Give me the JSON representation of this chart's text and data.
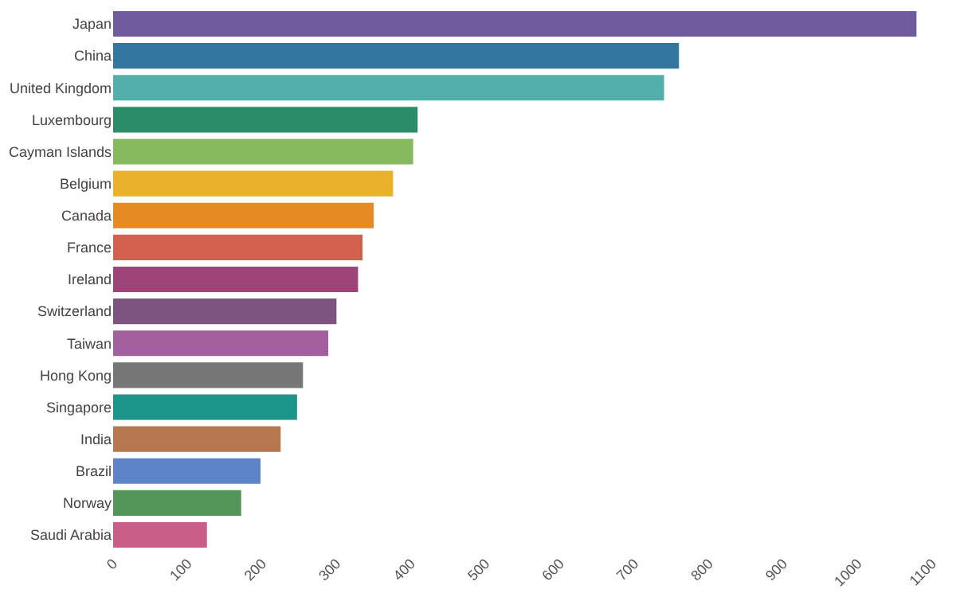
{
  "chart_data": {
    "type": "bar",
    "orientation": "horizontal",
    "categories": [
      "Japan",
      "China",
      "United Kingdom",
      "Luxembourg",
      "Cayman Islands",
      "Belgium",
      "Canada",
      "France",
      "Ireland",
      "Switzerland",
      "Taiwan",
      "Hong Kong",
      "Singapore",
      "India",
      "Brazil",
      "Norway",
      "Saudi Arabia"
    ],
    "values": [
      1079,
      760,
      740,
      409,
      403,
      376,
      350,
      335,
      329,
      300,
      289,
      255,
      247,
      225,
      198,
      172,
      126
    ],
    "colors": [
      "#6e5a9c",
      "#33779f",
      "#52afac",
      "#2a8c68",
      "#86b85e",
      "#eab22a",
      "#e68a24",
      "#d2624f",
      "#9f4479",
      "#7d5380",
      "#a45f9e",
      "#777777",
      "#1b9489",
      "#b6764e",
      "#5c84c8",
      "#53965a",
      "#c85f88"
    ],
    "xlim": [
      0,
      1100
    ],
    "xticks": [
      0,
      100,
      200,
      300,
      400,
      500,
      600,
      700,
      800,
      900,
      1000,
      1100
    ],
    "grid": false
  }
}
